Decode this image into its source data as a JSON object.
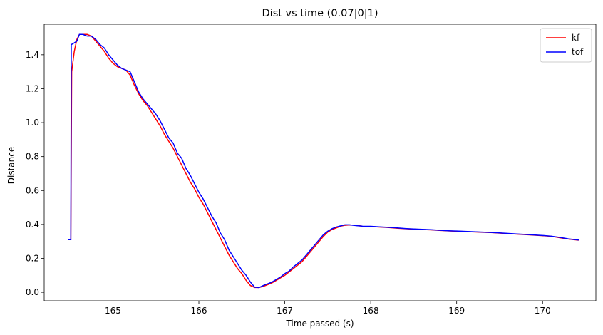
{
  "chart_data": {
    "type": "line",
    "title": "Dist vs time (0.07|0|1)",
    "xlabel": "Time passed (s)",
    "ylabel": "Distance",
    "xlim": [
      164.2,
      170.62
    ],
    "ylim": [
      -0.05,
      1.58
    ],
    "xticks": [
      165,
      166,
      167,
      168,
      169,
      170
    ],
    "yticks": [
      0.0,
      0.2,
      0.4,
      0.6,
      0.8,
      1.0,
      1.2,
      1.4
    ],
    "grid": false,
    "legend_position": "top-right",
    "series": [
      {
        "name": "kf",
        "color": "#ff0000",
        "x": [
          164.48,
          164.51,
          164.52,
          164.55,
          164.58,
          164.61,
          164.65,
          164.7,
          164.75,
          164.8,
          164.85,
          164.9,
          164.95,
          165.0,
          165.05,
          165.1,
          165.15,
          165.2,
          165.25,
          165.3,
          165.35,
          165.4,
          165.45,
          165.5,
          165.55,
          165.6,
          165.65,
          165.7,
          165.75,
          165.8,
          165.85,
          165.9,
          165.95,
          166.0,
          166.05,
          166.1,
          166.15,
          166.2,
          166.25,
          166.3,
          166.35,
          166.4,
          166.45,
          166.5,
          166.55,
          166.6,
          166.65,
          166.7,
          166.75,
          166.8,
          166.85,
          166.9,
          166.95,
          167.0,
          167.05,
          167.1,
          167.15,
          167.2,
          167.25,
          167.3,
          167.35,
          167.4,
          167.45,
          167.5,
          167.55,
          167.6,
          167.65,
          167.7,
          167.75,
          167.8,
          167.85,
          167.9,
          168.0,
          168.1,
          168.2,
          168.3,
          168.4,
          168.5,
          168.6,
          168.7,
          168.8,
          168.9,
          169.0,
          169.1,
          169.2,
          169.3,
          169.4,
          169.5,
          169.6,
          169.7,
          169.8,
          169.9,
          170.0,
          170.1,
          170.2,
          170.3,
          170.42
        ],
        "y": [
          0.31,
          0.31,
          1.3,
          1.42,
          1.49,
          1.52,
          1.52,
          1.52,
          1.51,
          1.48,
          1.45,
          1.42,
          1.38,
          1.35,
          1.33,
          1.32,
          1.31,
          1.28,
          1.22,
          1.17,
          1.13,
          1.1,
          1.06,
          1.02,
          0.98,
          0.93,
          0.89,
          0.85,
          0.8,
          0.75,
          0.7,
          0.65,
          0.61,
          0.56,
          0.52,
          0.47,
          0.42,
          0.37,
          0.32,
          0.27,
          0.22,
          0.18,
          0.14,
          0.11,
          0.07,
          0.04,
          0.028,
          0.028,
          0.035,
          0.045,
          0.055,
          0.07,
          0.085,
          0.1,
          0.12,
          0.14,
          0.16,
          0.18,
          0.21,
          0.24,
          0.27,
          0.3,
          0.33,
          0.355,
          0.37,
          0.38,
          0.39,
          0.395,
          0.397,
          0.396,
          0.393,
          0.39,
          0.388,
          0.385,
          0.382,
          0.378,
          0.375,
          0.372,
          0.37,
          0.368,
          0.365,
          0.362,
          0.36,
          0.358,
          0.356,
          0.354,
          0.352,
          0.349,
          0.346,
          0.343,
          0.34,
          0.337,
          0.334,
          0.33,
          0.322,
          0.314,
          0.307
        ]
      },
      {
        "name": "tof",
        "color": "#0000ff",
        "x": [
          164.48,
          164.51,
          164.515,
          164.55,
          164.58,
          164.61,
          164.65,
          164.7,
          164.75,
          164.8,
          164.85,
          164.9,
          164.95,
          165.0,
          165.05,
          165.1,
          165.15,
          165.2,
          165.25,
          165.3,
          165.35,
          165.4,
          165.45,
          165.5,
          165.55,
          165.6,
          165.65,
          165.7,
          165.75,
          165.8,
          165.85,
          165.9,
          165.95,
          166.0,
          166.05,
          166.1,
          166.15,
          166.2,
          166.25,
          166.3,
          166.35,
          166.4,
          166.45,
          166.5,
          166.55,
          166.6,
          166.65,
          166.7,
          166.75,
          166.8,
          166.85,
          166.9,
          166.95,
          167.0,
          167.05,
          167.1,
          167.15,
          167.2,
          167.25,
          167.3,
          167.35,
          167.4,
          167.45,
          167.5,
          167.55,
          167.6,
          167.65,
          167.7,
          167.75,
          167.8,
          167.85,
          167.9,
          168.0,
          168.1,
          168.2,
          168.3,
          168.4,
          168.5,
          168.6,
          168.7,
          168.8,
          168.9,
          169.0,
          169.1,
          169.2,
          169.3,
          169.4,
          169.5,
          169.6,
          169.7,
          169.8,
          169.9,
          170.0,
          170.1,
          170.2,
          170.3,
          170.42
        ],
        "y": [
          0.31,
          0.31,
          1.46,
          1.47,
          1.48,
          1.52,
          1.52,
          1.51,
          1.51,
          1.49,
          1.46,
          1.44,
          1.4,
          1.37,
          1.34,
          1.32,
          1.31,
          1.3,
          1.24,
          1.18,
          1.14,
          1.11,
          1.08,
          1.05,
          1.01,
          0.96,
          0.91,
          0.88,
          0.82,
          0.79,
          0.73,
          0.69,
          0.64,
          0.59,
          0.55,
          0.5,
          0.45,
          0.41,
          0.35,
          0.31,
          0.25,
          0.21,
          0.17,
          0.13,
          0.1,
          0.06,
          0.03,
          0.028,
          0.04,
          0.05,
          0.06,
          0.075,
          0.09,
          0.11,
          0.125,
          0.15,
          0.17,
          0.19,
          0.22,
          0.25,
          0.28,
          0.31,
          0.34,
          0.36,
          0.375,
          0.385,
          0.392,
          0.398,
          0.398,
          0.395,
          0.392,
          0.39,
          0.389,
          0.386,
          0.383,
          0.38,
          0.376,
          0.373,
          0.371,
          0.369,
          0.366,
          0.363,
          0.361,
          0.359,
          0.357,
          0.355,
          0.353,
          0.35,
          0.347,
          0.344,
          0.341,
          0.338,
          0.335,
          0.331,
          0.324,
          0.315,
          0.308
        ]
      }
    ]
  }
}
